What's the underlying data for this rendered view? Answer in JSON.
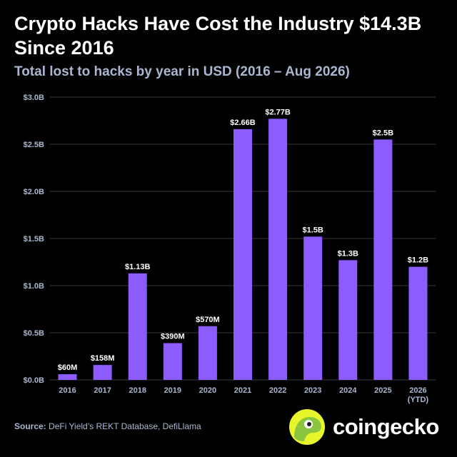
{
  "title": "Crypto Hacks Have Cost the Industry $14.3B Since 2016",
  "subtitle": "Total lost to hacks by year in USD (2016 – Aug 2026)",
  "source": {
    "label": "Source:",
    "text": "DeFi Yield’s REKT Database, DefiLlama"
  },
  "brand": {
    "name": "coingecko",
    "logo_icon": "gecko-logo-icon"
  },
  "colors": {
    "background": "#000000",
    "bar": "#8c5cff",
    "muted_text": "#a9b7d0",
    "gridline": "#3a3a3a",
    "logo_yellow": "#e7f52a",
    "logo_green": "#8bc53f"
  },
  "chart_data": {
    "type": "bar",
    "title": "Crypto Hacks Have Cost the Industry $14.3B Since 2016",
    "subtitle": "Total lost to hacks by year in USD (2016 – Aug 2026)",
    "xlabel": "",
    "ylabel": "",
    "ylim": [
      0,
      3.0
    ],
    "unit": "B USD",
    "grid": true,
    "yticks": [
      {
        "value": 0.0,
        "label": "$0.0B"
      },
      {
        "value": 0.5,
        "label": "$0.5B"
      },
      {
        "value": 1.0,
        "label": "$1.0B"
      },
      {
        "value": 1.5,
        "label": "$1.5B"
      },
      {
        "value": 2.0,
        "label": "$2.0B"
      },
      {
        "value": 2.5,
        "label": "$2.5B"
      },
      {
        "value": 3.0,
        "label": "$3.0B"
      }
    ],
    "categories": [
      "2016",
      "2017",
      "2018",
      "2019",
      "2020",
      "2021",
      "2022",
      "2023",
      "2024",
      "2025",
      "2026\n(YTD)"
    ],
    "values": [
      0.06,
      0.158,
      1.13,
      0.39,
      0.57,
      2.66,
      2.77,
      1.52,
      1.27,
      2.55,
      1.2
    ],
    "data_labels": [
      "$60M",
      "$158M",
      "$1.13B",
      "$390M",
      "$570M",
      "$2.66B",
      "$2.77B",
      "$1.5B",
      "$1.3B",
      "$2.5B",
      "$1.2B"
    ]
  }
}
